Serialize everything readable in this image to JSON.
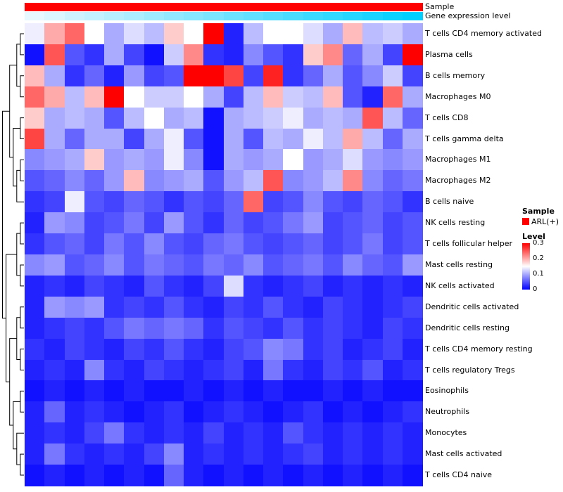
{
  "annotations": {
    "sample_label": "Sample",
    "expression_label": "Gene expression level"
  },
  "legend": {
    "sample_title": "Sample",
    "sample_items": [
      {
        "label": "ARL(+)",
        "color": "#FF0000"
      }
    ],
    "level_title": "Level",
    "level_ticks": [
      "0.3",
      "0.2",
      "0.1",
      "0"
    ]
  },
  "chart_data": {
    "type": "heatmap",
    "title": "",
    "rows": [
      "T cells CD4 memory activated",
      "Plasma cells",
      "B cells memory",
      "Macrophages M0",
      "T cells CD8",
      "T cells gamma delta",
      "Macrophages M1",
      "Macrophages M2",
      "B cells naive",
      "NK cells resting",
      "T cells follicular helper",
      "Mast cells resting",
      "NK cells activated",
      "Dendritic cells activated",
      "Dendritic cells resting",
      "T cells CD4 memory resting",
      "T cells regulatory Tregs",
      "Eosinophils",
      "Neutrophils",
      "Monocytes",
      "Mast cells activated",
      "T cells CD4 naive"
    ],
    "columns": 20,
    "value_range": [
      0,
      0.3
    ],
    "colormap": {
      "low": "#0000FF",
      "mid": "#FFFFFF",
      "high": "#FF0000"
    },
    "values": [
      [
        0.14,
        0.2,
        0.24,
        0.15,
        0.1,
        0.13,
        0.11,
        0.18,
        0.15,
        0.32,
        0.02,
        0.11,
        0.15,
        0.15,
        0.13,
        0.1,
        0.19,
        0.11,
        0.12,
        0.1
      ],
      [
        0.01,
        0.25,
        0.05,
        0.03,
        0.1,
        0.04,
        0.01,
        0.12,
        0.22,
        0.03,
        0.02,
        0.08,
        0.05,
        0.03,
        0.18,
        0.22,
        0.06,
        0.1,
        0.04,
        0.32
      ],
      [
        0.19,
        0.1,
        0.03,
        0.06,
        0.02,
        0.09,
        0.04,
        0.05,
        0.3,
        0.32,
        0.26,
        0.04,
        0.28,
        0.03,
        0.06,
        0.1,
        0.05,
        0.08,
        0.12,
        0.04
      ],
      [
        0.24,
        0.2,
        0.11,
        0.19,
        0.33,
        0.15,
        0.12,
        0.12,
        0.15,
        0.1,
        0.04,
        0.11,
        0.19,
        0.12,
        0.11,
        0.19,
        0.05,
        0.02,
        0.24,
        0.1
      ],
      [
        0.18,
        0.1,
        0.11,
        0.1,
        0.05,
        0.11,
        0.15,
        0.1,
        0.11,
        0.01,
        0.1,
        0.11,
        0.12,
        0.14,
        0.1,
        0.11,
        0.1,
        0.25,
        0.11,
        0.06
      ],
      [
        0.26,
        0.1,
        0.06,
        0.1,
        0.1,
        0.04,
        0.1,
        0.14,
        0.05,
        0.01,
        0.1,
        0.05,
        0.11,
        0.1,
        0.14,
        0.11,
        0.2,
        0.11,
        0.06,
        0.1
      ],
      [
        0.08,
        0.09,
        0.1,
        0.18,
        0.09,
        0.1,
        0.09,
        0.14,
        0.08,
        0.01,
        0.1,
        0.09,
        0.1,
        0.15,
        0.09,
        0.1,
        0.13,
        0.09,
        0.08,
        0.09
      ],
      [
        0.05,
        0.06,
        0.08,
        0.06,
        0.09,
        0.19,
        0.08,
        0.09,
        0.1,
        0.05,
        0.09,
        0.11,
        0.25,
        0.08,
        0.09,
        0.11,
        0.22,
        0.08,
        0.06,
        0.07
      ],
      [
        0.03,
        0.04,
        0.14,
        0.05,
        0.04,
        0.06,
        0.05,
        0.03,
        0.05,
        0.04,
        0.06,
        0.24,
        0.04,
        0.05,
        0.08,
        0.05,
        0.04,
        0.06,
        0.05,
        0.03
      ],
      [
        0.02,
        0.09,
        0.08,
        0.04,
        0.05,
        0.07,
        0.04,
        0.09,
        0.05,
        0.03,
        0.06,
        0.04,
        0.05,
        0.07,
        0.09,
        0.04,
        0.05,
        0.06,
        0.04,
        0.05
      ],
      [
        0.03,
        0.05,
        0.06,
        0.04,
        0.07,
        0.05,
        0.08,
        0.05,
        0.04,
        0.06,
        0.07,
        0.05,
        0.04,
        0.05,
        0.06,
        0.04,
        0.05,
        0.07,
        0.04,
        0.05
      ],
      [
        0.08,
        0.09,
        0.05,
        0.06,
        0.08,
        0.05,
        0.07,
        0.06,
        0.05,
        0.07,
        0.06,
        0.08,
        0.05,
        0.06,
        0.07,
        0.05,
        0.08,
        0.06,
        0.05,
        0.09
      ],
      [
        0.02,
        0.03,
        0.02,
        0.04,
        0.03,
        0.02,
        0.05,
        0.03,
        0.02,
        0.04,
        0.13,
        0.03,
        0.02,
        0.03,
        0.04,
        0.02,
        0.03,
        0.02,
        0.03,
        0.02
      ],
      [
        0.02,
        0.09,
        0.08,
        0.09,
        0.03,
        0.04,
        0.03,
        0.05,
        0.03,
        0.02,
        0.04,
        0.03,
        0.05,
        0.03,
        0.02,
        0.04,
        0.03,
        0.02,
        0.03,
        0.04
      ],
      [
        0.02,
        0.03,
        0.04,
        0.03,
        0.05,
        0.07,
        0.06,
        0.07,
        0.06,
        0.03,
        0.05,
        0.04,
        0.03,
        0.05,
        0.03,
        0.04,
        0.03,
        0.02,
        0.04,
        0.03
      ],
      [
        0.03,
        0.02,
        0.04,
        0.03,
        0.02,
        0.04,
        0.03,
        0.05,
        0.03,
        0.02,
        0.04,
        0.05,
        0.08,
        0.07,
        0.03,
        0.04,
        0.02,
        0.03,
        0.04,
        0.02
      ],
      [
        0.02,
        0.03,
        0.02,
        0.08,
        0.03,
        0.02,
        0.04,
        0.03,
        0.02,
        0.03,
        0.04,
        0.02,
        0.07,
        0.03,
        0.02,
        0.04,
        0.03,
        0.05,
        0.02,
        0.03
      ],
      [
        0.01,
        0.02,
        0.01,
        0.02,
        0.01,
        0.02,
        0.01,
        0.01,
        0.02,
        0.01,
        0.02,
        0.01,
        0.02,
        0.01,
        0.01,
        0.02,
        0.01,
        0.02,
        0.01,
        0.01
      ],
      [
        0.02,
        0.06,
        0.02,
        0.03,
        0.02,
        0.01,
        0.02,
        0.03,
        0.01,
        0.02,
        0.03,
        0.02,
        0.01,
        0.02,
        0.03,
        0.01,
        0.02,
        0.01,
        0.02,
        0.03
      ],
      [
        0.02,
        0.03,
        0.02,
        0.04,
        0.07,
        0.03,
        0.02,
        0.03,
        0.02,
        0.04,
        0.02,
        0.03,
        0.02,
        0.05,
        0.03,
        0.02,
        0.03,
        0.02,
        0.03,
        0.02
      ],
      [
        0.02,
        0.07,
        0.03,
        0.02,
        0.03,
        0.02,
        0.04,
        0.08,
        0.02,
        0.03,
        0.02,
        0.03,
        0.02,
        0.03,
        0.04,
        0.02,
        0.03,
        0.02,
        0.03,
        0.02
      ],
      [
        0.01,
        0.02,
        0.01,
        0.02,
        0.01,
        0.02,
        0.01,
        0.06,
        0.02,
        0.01,
        0.02,
        0.01,
        0.02,
        0.01,
        0.02,
        0.01,
        0.02,
        0.01,
        0.02,
        0.01
      ]
    ],
    "column_annotations": {
      "sample": {
        "label": "Sample",
        "values": [
          "ARL(+)",
          "ARL(+)",
          "ARL(+)",
          "ARL(+)",
          "ARL(+)",
          "ARL(+)",
          "ARL(+)",
          "ARL(+)",
          "ARL(+)",
          "ARL(+)",
          "ARL(+)",
          "ARL(+)",
          "ARL(+)",
          "ARL(+)",
          "ARL(+)",
          "ARL(+)",
          "ARL(+)",
          "ARL(+)",
          "ARL(+)",
          "ARL(+)"
        ],
        "colors": {
          "ARL(+)": "#FF0000"
        }
      },
      "gene_expression_level": {
        "label": "Gene expression level",
        "values": [
          0,
          0.05,
          0.11,
          0.16,
          0.21,
          0.26,
          0.32,
          0.37,
          0.42,
          0.47,
          0.53,
          0.58,
          0.63,
          0.68,
          0.74,
          0.79,
          0.84,
          0.89,
          0.95,
          1
        ],
        "gradient_from": "#E8F8FF",
        "gradient_to": "#00CFFF"
      }
    },
    "dendrogram": [
      [
        [
          [
            0,
            1
          ],
          [
            2,
            3
          ]
        ],
        [
          [
            4,
            5
          ],
          [
            [
              6,
              7
            ],
            8
          ]
        ]
      ],
      [
        [
          [
            9,
            10
          ],
          [
            11,
            12
          ]
        ],
        [
          [
            [
              13,
              14
            ],
            [
              15,
              16
            ]
          ],
          [
            [
              17,
              18
            ],
            [
              19,
              [
                20,
                21
              ]
            ]
          ]
        ]
      ]
    ]
  }
}
